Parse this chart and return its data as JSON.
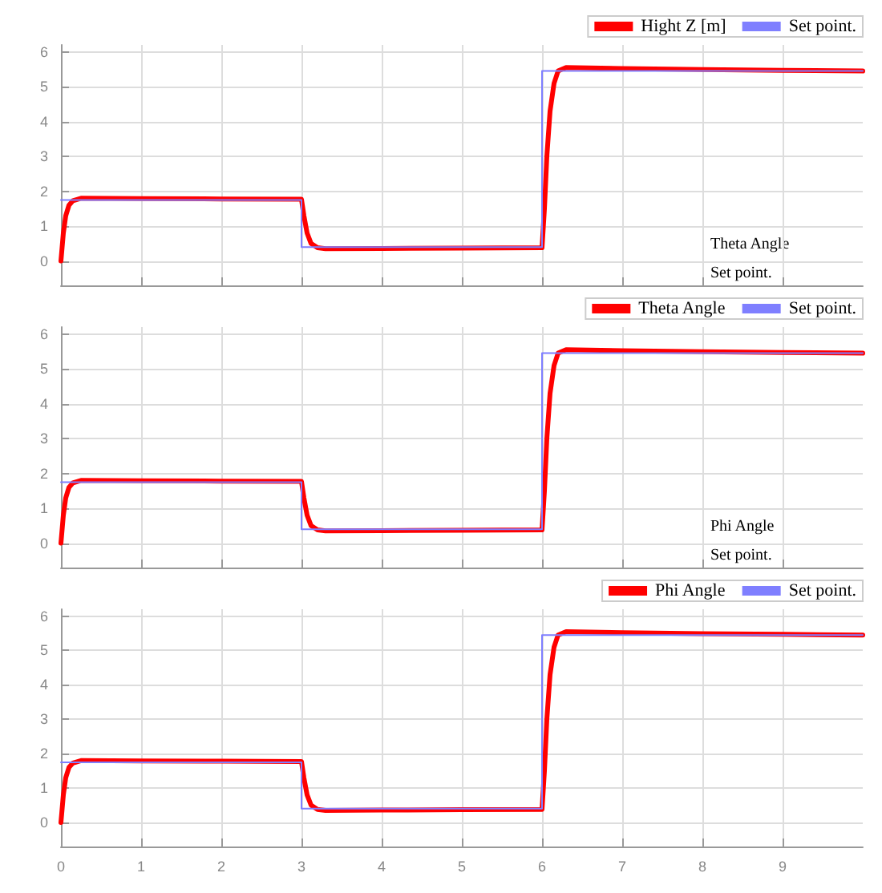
{
  "chart_data": [
    {
      "type": "line",
      "xlim": [
        0,
        10
      ],
      "ylim": [
        -0.7,
        6.2
      ],
      "xticks": [
        0,
        1,
        2,
        3,
        4,
        5,
        6,
        7,
        8,
        9
      ],
      "yticks": [
        0,
        1,
        2,
        3,
        4,
        5,
        6
      ],
      "tick_labels": "y",
      "grid": true,
      "legend": "top right",
      "line_style": "solid",
      "annotations": [
        "Theta Angle",
        "Set point."
      ],
      "series": [
        {
          "name": "Hight Z [m]",
          "color": "#ff0000",
          "x": [
            0,
            0.03,
            0.06,
            0.1,
            0.15,
            0.25,
            1,
            2,
            3,
            3.03,
            3.07,
            3.12,
            3.2,
            3.3,
            4,
            5,
            6,
            6.03,
            6.06,
            6.1,
            6.15,
            6.2,
            6.3,
            7,
            8,
            9,
            10
          ],
          "values": [
            0,
            0.8,
            1.3,
            1.6,
            1.73,
            1.8,
            1.79,
            1.78,
            1.77,
            1.3,
            0.8,
            0.5,
            0.38,
            0.35,
            0.36,
            0.37,
            0.38,
            1.5,
            3,
            4.3,
            5.1,
            5.45,
            5.55,
            5.52,
            5.49,
            5.47,
            5.45
          ]
        },
        {
          "name": "Set point.",
          "type": "step",
          "color": "#7f7fff",
          "x": [
            0,
            3,
            6,
            10
          ],
          "values": [
            1.75,
            0.4,
            5.45,
            5.45
          ]
        }
      ]
    },
    {
      "type": "line",
      "xlim": [
        0,
        10
      ],
      "ylim": [
        -0.7,
        6.2
      ],
      "xticks": [
        0,
        1,
        2,
        3,
        4,
        5,
        6,
        7,
        8,
        9
      ],
      "yticks": [
        0,
        1,
        2,
        3,
        4,
        5,
        6
      ],
      "tick_labels": "y",
      "grid": true,
      "legend": "top right",
      "line_style": "solid",
      "annotations": [
        "Phi Angle",
        "Set point."
      ],
      "series": [
        {
          "name": "Theta Angle",
          "color": "#ff0000",
          "x": [
            0,
            0.03,
            0.06,
            0.1,
            0.15,
            0.25,
            1,
            2,
            3,
            3.03,
            3.07,
            3.12,
            3.2,
            3.3,
            4,
            5,
            6,
            6.03,
            6.06,
            6.1,
            6.15,
            6.2,
            6.3,
            7,
            8,
            9,
            10
          ],
          "values": [
            0,
            0.8,
            1.3,
            1.6,
            1.73,
            1.8,
            1.79,
            1.78,
            1.77,
            1.3,
            0.8,
            0.5,
            0.38,
            0.35,
            0.36,
            0.37,
            0.38,
            1.5,
            3,
            4.3,
            5.1,
            5.45,
            5.55,
            5.52,
            5.49,
            5.47,
            5.45
          ]
        },
        {
          "name": "Set point.",
          "type": "step",
          "color": "#7f7fff",
          "x": [
            0,
            3,
            6,
            10
          ],
          "values": [
            1.75,
            0.4,
            5.45,
            5.45
          ]
        }
      ]
    },
    {
      "type": "line",
      "xlim": [
        0,
        10
      ],
      "ylim": [
        -0.7,
        6.2
      ],
      "xticks": [
        0,
        1,
        2,
        3,
        4,
        5,
        6,
        7,
        8,
        9
      ],
      "yticks": [
        0,
        1,
        2,
        3,
        4,
        5,
        6
      ],
      "grid": true,
      "legend": "top right",
      "line_style": "solid",
      "series": [
        {
          "name": "Phi Angle",
          "color": "#ff0000",
          "x": [
            0,
            0.03,
            0.06,
            0.1,
            0.15,
            0.25,
            1,
            2,
            3,
            3.03,
            3.07,
            3.12,
            3.2,
            3.3,
            4,
            5,
            6,
            6.03,
            6.06,
            6.1,
            6.15,
            6.2,
            6.3,
            7,
            8,
            9,
            10
          ],
          "values": [
            0,
            0.8,
            1.3,
            1.6,
            1.73,
            1.8,
            1.79,
            1.78,
            1.77,
            1.3,
            0.8,
            0.5,
            0.38,
            0.35,
            0.36,
            0.37,
            0.38,
            1.5,
            3,
            4.3,
            5.1,
            5.45,
            5.55,
            5.52,
            5.49,
            5.47,
            5.45
          ]
        },
        {
          "name": "Set point.",
          "type": "step",
          "color": "#7f7fff",
          "x": [
            0,
            3,
            6,
            10
          ],
          "values": [
            1.75,
            0.4,
            5.45,
            5.45
          ]
        }
      ]
    }
  ]
}
